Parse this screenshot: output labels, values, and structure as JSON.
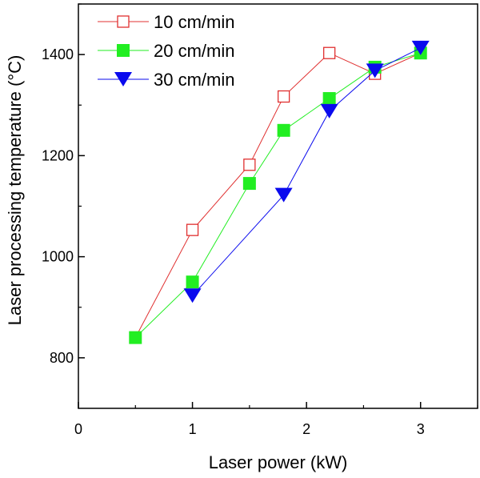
{
  "chart_data": {
    "type": "line",
    "xlabel": "Laser power (kW)",
    "ylabel": "Laser processing temperature (°C)",
    "xlim": [
      0,
      3.5
    ],
    "ylim": [
      700,
      1500
    ],
    "xticks": [
      0,
      1,
      2,
      3
    ],
    "yticks": [
      800,
      1000,
      1200,
      1400
    ],
    "grid": false,
    "legend_position": "top-left",
    "series": [
      {
        "name": "10 cm/min",
        "marker": "open-square",
        "color": "#e03030",
        "x": [
          0.5,
          1.0,
          1.5,
          1.8,
          2.2,
          2.6,
          3.0
        ],
        "y": [
          840,
          1053,
          1182,
          1317,
          1403,
          1362,
          1403
        ]
      },
      {
        "name": "20 cm/min",
        "marker": "filled-square",
        "color": "#22ee22",
        "x": [
          0.5,
          1.0,
          1.5,
          1.8,
          2.2,
          2.6,
          3.0
        ],
        "y": [
          840,
          950,
          1145,
          1250,
          1313,
          1375,
          1403
        ]
      },
      {
        "name": "30 cm/min",
        "marker": "filled-down-triangle",
        "color": "#0a0aee",
        "x": [
          1.0,
          1.8,
          2.2,
          2.6,
          3.0
        ],
        "y": [
          923,
          1122,
          1288,
          1368,
          1413
        ]
      }
    ]
  }
}
